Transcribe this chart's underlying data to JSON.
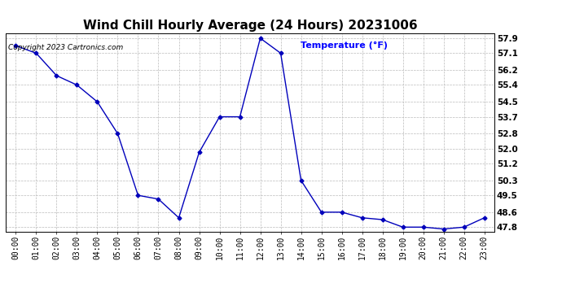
{
  "title": "Wind Chill Hourly Average (24 Hours) 20231006",
  "copyright": "Copyright 2023 Cartronics.com",
  "ylabel": "Temperature (°F)",
  "hours": [
    "00:00",
    "01:00",
    "02:00",
    "03:00",
    "04:00",
    "05:00",
    "06:00",
    "07:00",
    "08:00",
    "09:00",
    "10:00",
    "11:00",
    "12:00",
    "13:00",
    "14:00",
    "15:00",
    "16:00",
    "17:00",
    "18:00",
    "19:00",
    "20:00",
    "21:00",
    "22:00",
    "23:00"
  ],
  "values": [
    57.5,
    57.1,
    55.9,
    55.4,
    54.5,
    52.8,
    49.5,
    49.3,
    48.3,
    51.8,
    53.7,
    53.7,
    57.9,
    57.1,
    50.3,
    48.6,
    48.6,
    48.3,
    48.2,
    47.8,
    47.8,
    47.7,
    47.8,
    48.3
  ],
  "line_color": "#0000bb",
  "marker": "D",
  "marker_size": 2.5,
  "grid_color": "#bbbbbb",
  "background_color": "#ffffff",
  "yticks": [
    47.8,
    48.6,
    49.5,
    50.3,
    51.2,
    52.0,
    52.8,
    53.7,
    54.5,
    55.4,
    56.2,
    57.1,
    57.9
  ],
  "ylabel_color": "#0000ff",
  "copyright_color": "#000000",
  "title_color": "#000000",
  "title_fontsize": 11,
  "copyright_fontsize": 6.5,
  "ylabel_fontsize": 8,
  "ytick_fontsize": 7.5,
  "xtick_fontsize": 7
}
